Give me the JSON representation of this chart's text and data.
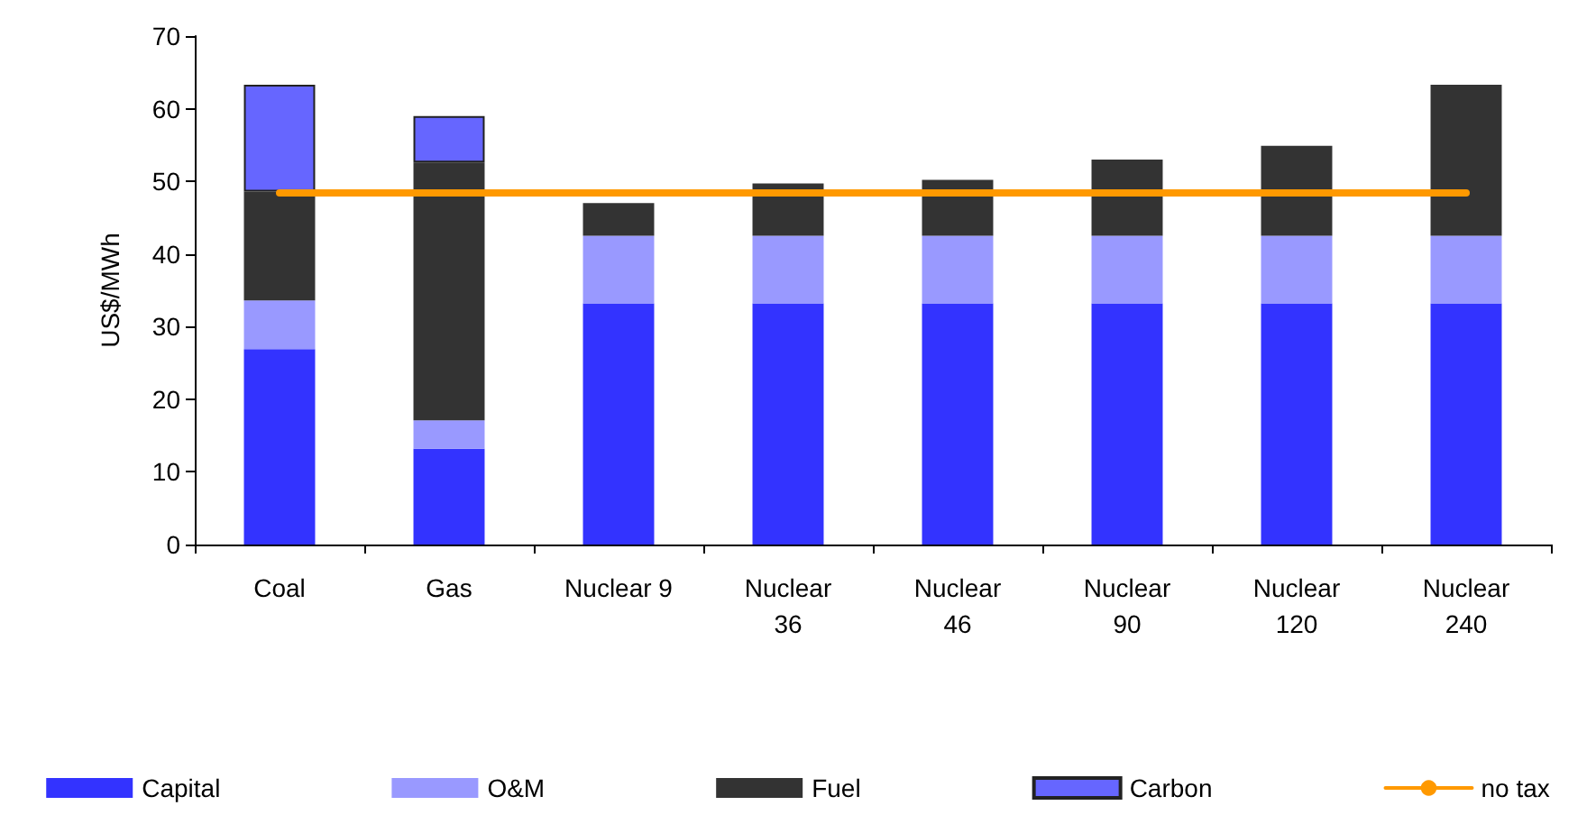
{
  "chart_data": {
    "type": "bar",
    "ylabel": "US$/MWh",
    "stacked": true,
    "categories": [
      "Coal",
      "Gas",
      "Nuclear 9",
      "Nuclear\n36",
      "Nuclear\n46",
      "Nuclear\n90",
      "Nuclear\n120",
      "Nuclear\n240"
    ],
    "series": [
      {
        "name": "Capital",
        "color": "#3333ff",
        "values": [
          26.9,
          13.2,
          33.2,
          33.2,
          33.2,
          33.2,
          33.2,
          33.2
        ]
      },
      {
        "name": "O&M",
        "color": "#9999ff",
        "values": [
          6.7,
          3.9,
          9.3,
          9.3,
          9.3,
          9.3,
          9.3,
          9.3
        ]
      },
      {
        "name": "Fuel",
        "color": "#333333",
        "values": [
          15.0,
          35.5,
          4.5,
          7.2,
          7.7,
          10.5,
          12.4,
          20.8
        ]
      },
      {
        "name": "Carbon",
        "color": "#6666ff",
        "values": [
          14.7,
          6.4,
          null,
          null,
          null,
          null,
          null,
          null
        ]
      },
      {
        "name": "no tax",
        "type": "line",
        "color": "#ff9900",
        "marker": "none",
        "values": [
          48.4,
          48.4,
          48.4,
          48.4,
          48.4,
          48.4,
          48.4,
          48.4
        ]
      }
    ],
    "ylim": [
      0,
      70
    ],
    "yticks": [
      0,
      10,
      20,
      30,
      40,
      50,
      60,
      70
    ],
    "grid": false,
    "legend": "bottom"
  }
}
